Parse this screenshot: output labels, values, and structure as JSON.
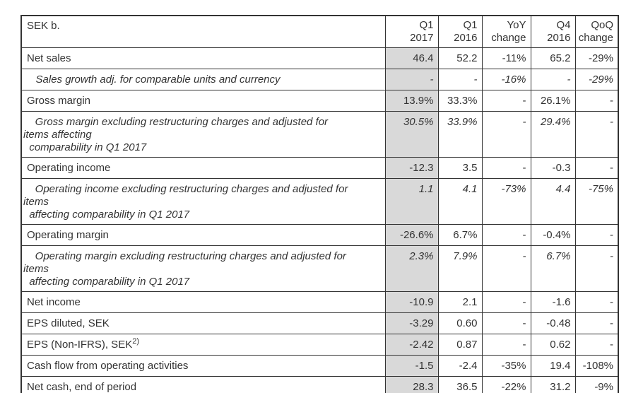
{
  "page": {
    "background_color": "#ffffff"
  },
  "table": {
    "unit_label": "SEK b.",
    "columns": [
      "Q1\n2017",
      "Q1\n2016",
      "YoY\nchange",
      "Q4\n2016",
      "QoQ\nchange"
    ],
    "shaded_column": "Q1 2017",
    "shaded_column_color": "#d9d9d9",
    "border_color": "#333333",
    "text_color": "#333333",
    "rows": [
      {
        "label": "Net sales",
        "style": "normal",
        "values": [
          "46.4",
          "52.2",
          "-11%",
          "65.2",
          "-29%"
        ]
      },
      {
        "label": "   Sales growth adj. for comparable units and currency",
        "style": "italic",
        "values": [
          "-",
          "-",
          "-16%",
          "-",
          "-29%"
        ]
      },
      {
        "label": "Gross margin",
        "style": "normal",
        "values": [
          "13.9%",
          "33.3%",
          "-",
          "26.1%",
          "-"
        ]
      },
      {
        "label": "    Gross margin excluding restructuring charges and adjusted for\nitems affecting\n  comparability in Q1 2017",
        "style": "italic-multi",
        "values": [
          "30.5%",
          "33.9%",
          "-",
          "29.4%",
          "-"
        ]
      },
      {
        "label": "Operating income",
        "style": "normal",
        "values": [
          "-12.3",
          "3.5",
          "-",
          "-0.3",
          "-"
        ]
      },
      {
        "label": "    Operating income excluding restructuring charges and adjusted for\nitems\n  affecting comparability in Q1 2017",
        "style": "italic-multi",
        "values": [
          "1.1",
          "4.1",
          "-73%",
          "4.4",
          "-75%"
        ]
      },
      {
        "label": "Operating margin",
        "style": "normal",
        "values": [
          "-26.6%",
          "6.7%",
          "-",
          "-0.4%",
          "-"
        ]
      },
      {
        "label": "    Operating margin excluding restructuring charges and adjusted for\nitems\n  affecting comparability in Q1 2017",
        "style": "italic-multi",
        "values": [
          "2.3%",
          "7.9%",
          "-",
          "6.7%",
          "-"
        ]
      },
      {
        "label": "Net income",
        "style": "normal",
        "values": [
          "-10.9",
          "2.1",
          "-",
          "-1.6",
          "-"
        ]
      },
      {
        "label": "EPS diluted, SEK",
        "style": "normal",
        "values": [
          "-3.29",
          "0.60",
          "-",
          "-0.48",
          "-"
        ]
      },
      {
        "label": "EPS (Non-IFRS), SEK",
        "label_sup": "2)",
        "style": "normal",
        "values": [
          "-2.42",
          "0.87",
          "-",
          "0.62",
          "-"
        ]
      },
      {
        "label": "Cash flow from operating activities",
        "style": "normal",
        "values": [
          "-1.5",
          "-2.4",
          "-35%",
          "19.4",
          "-108%"
        ]
      },
      {
        "label": "Net cash, end of period",
        "style": "normal",
        "values": [
          "28.3",
          "36.5",
          "-22%",
          "31.2",
          "-9%"
        ]
      }
    ]
  }
}
